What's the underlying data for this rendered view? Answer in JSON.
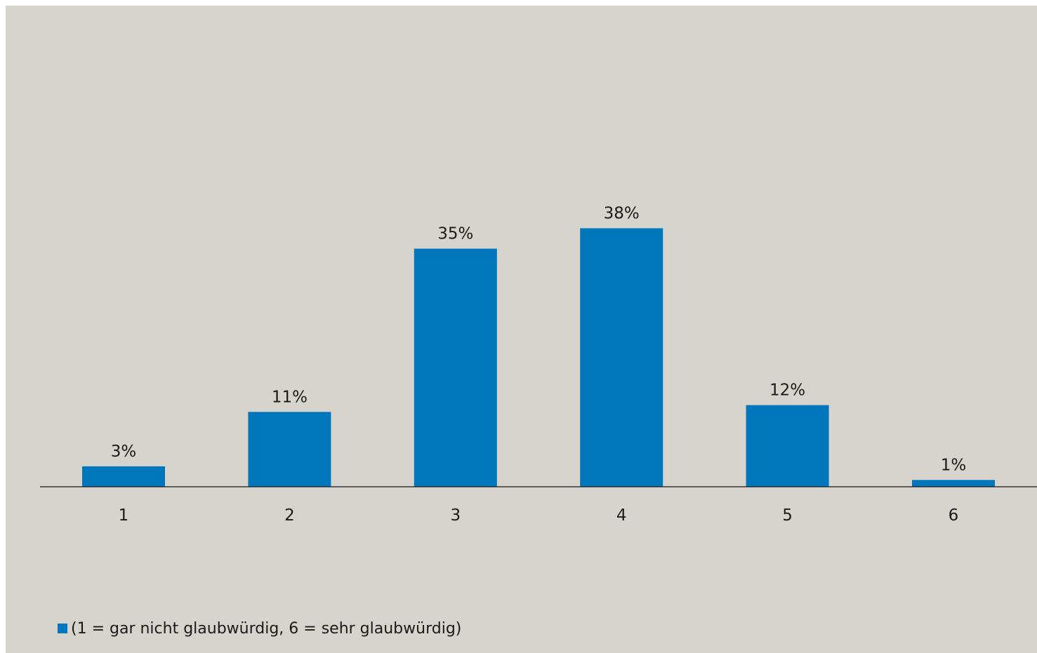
{
  "chart_data": {
    "type": "bar",
    "categories": [
      "1",
      "2",
      "3",
      "4",
      "5",
      "6"
    ],
    "values": [
      3,
      11,
      35,
      38,
      12,
      1
    ],
    "value_labels": [
      "3%",
      "11%",
      "35%",
      "38%",
      "12%",
      "1%"
    ],
    "unit": "%",
    "series": [
      {
        "name": "(1 = gar nicht glaubwürdig, 6 = sehr glaubwürdig)",
        "values": [
          3,
          11,
          35,
          38,
          12,
          1
        ]
      }
    ],
    "title": "",
    "xlabel": "",
    "ylabel": "",
    "ylim": [
      0,
      40
    ],
    "grid": false,
    "legend_position": "bottom-left"
  },
  "colors": {
    "bar": "#0077bd",
    "background": "#d7d3cd",
    "axis": "#1a1a1a"
  }
}
